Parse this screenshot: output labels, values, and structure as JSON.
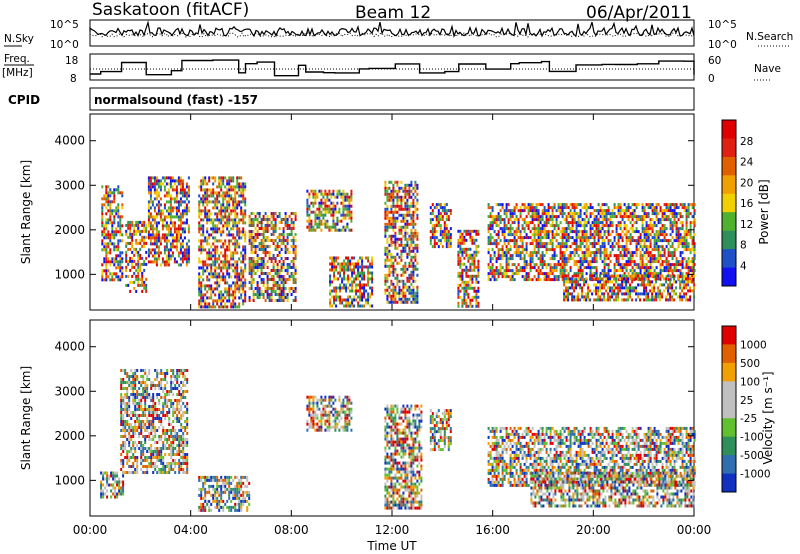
{
  "header": {
    "title": "Saskatoon (fitACF)",
    "beam": "Beam 12",
    "date": "06/Apr/2011"
  },
  "rows": {
    "nsky_label": "N.Sky",
    "nsky_ticks": [
      "10^5",
      "10^0"
    ],
    "nsearch_label": "N.Search",
    "nsearch_ticks": [
      "10^5",
      "10^0"
    ],
    "freq_label": "Freq.",
    "freq_unit": "[MHz]",
    "freq_ticks": [
      "18",
      "8"
    ],
    "nave_label": "Nave",
    "nave_ticks": [
      "60",
      "0"
    ],
    "cpid_label": "CPID",
    "cpid_value": "normalsound (fast) -157"
  },
  "chart_data": [
    {
      "type": "heatmap",
      "name": "power",
      "ylabel": "Slant Range [km]",
      "yticks": [
        1000,
        2000,
        3000,
        4000
      ],
      "ylim": [
        200,
        4600
      ],
      "xlim": [
        0,
        24
      ],
      "colorbar": {
        "label": "Power [dB]",
        "ticks": [
          "28",
          "24",
          "20",
          "16",
          "12",
          "8",
          "4"
        ],
        "colors": [
          "#1010f0",
          "#2050c8",
          "#2f8f5a",
          "#50b030",
          "#f0d000",
          "#f0a000",
          "#e06000",
          "#e02010",
          "#e00000"
        ]
      },
      "echo_regions": [
        {
          "t0": 0.45,
          "t1": 1.3,
          "r0": 900,
          "r1": 3000
        },
        {
          "t0": 1.4,
          "t1": 2.2,
          "r0": 600,
          "r1": 2200
        },
        {
          "t0": 2.3,
          "t1": 3.9,
          "r0": 1200,
          "r1": 3200
        },
        {
          "t0": 4.3,
          "t1": 6.2,
          "r0": 300,
          "r1": 3200
        },
        {
          "t0": 6.3,
          "t1": 8.2,
          "r0": 400,
          "r1": 2400
        },
        {
          "t0": 8.6,
          "t1": 10.4,
          "r0": 2000,
          "r1": 2900
        },
        {
          "t0": 9.5,
          "t1": 11.2,
          "r0": 300,
          "r1": 1400
        },
        {
          "t0": 11.7,
          "t1": 13.0,
          "r0": 400,
          "r1": 3100
        },
        {
          "t0": 13.5,
          "t1": 14.3,
          "r0": 1600,
          "r1": 2600
        },
        {
          "t0": 14.6,
          "t1": 15.4,
          "r0": 300,
          "r1": 2000
        },
        {
          "t0": 15.8,
          "t1": 24.0,
          "r0": 900,
          "r1": 2600
        },
        {
          "t0": 18.8,
          "t1": 24.0,
          "r0": 400,
          "r1": 1000
        }
      ]
    },
    {
      "type": "heatmap",
      "name": "velocity",
      "ylabel": "Slant Range [km]",
      "yticks": [
        1000,
        2000,
        3000,
        4000
      ],
      "ylim": [
        200,
        4600
      ],
      "xlim": [
        0,
        24
      ],
      "xticks": [
        "00:00",
        "04:00",
        "08:00",
        "12:00",
        "16:00",
        "20:00",
        "00:00"
      ],
      "xlabel": "Time UT",
      "colorbar": {
        "label": "Velocity [m s⁻¹]",
        "ticks": [
          "1000",
          "500",
          "100",
          "25",
          "-25",
          "-100",
          "-500",
          "-1000"
        ],
        "colors": [
          "#1030c0",
          "#2f6fb0",
          "#2f8f5a",
          "#60c030",
          "#c0c0c0",
          "#c0c0c0",
          "#f0a000",
          "#e06000",
          "#e00000"
        ]
      },
      "echo_regions": [
        {
          "t0": 0.4,
          "t1": 1.3,
          "r0": 600,
          "r1": 1200
        },
        {
          "t0": 1.2,
          "t1": 3.9,
          "r0": 1200,
          "r1": 3500
        },
        {
          "t0": 4.3,
          "t1": 6.3,
          "r0": 300,
          "r1": 1100
        },
        {
          "t0": 8.6,
          "t1": 10.4,
          "r0": 2100,
          "r1": 2900
        },
        {
          "t0": 11.7,
          "t1": 13.2,
          "r0": 400,
          "r1": 2700
        },
        {
          "t0": 13.5,
          "t1": 14.3,
          "r0": 1700,
          "r1": 2600
        },
        {
          "t0": 15.8,
          "t1": 24.0,
          "r0": 900,
          "r1": 2200
        },
        {
          "t0": 17.5,
          "t1": 24.0,
          "r0": 400,
          "r1": 1200
        }
      ]
    }
  ]
}
